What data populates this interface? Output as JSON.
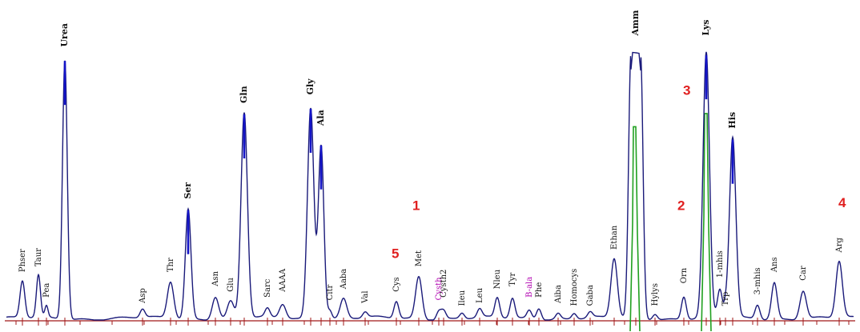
{
  "colors": {
    "baseline": "#a01818",
    "trace": "#1a1a7a",
    "peak_tip": "#1414c8",
    "overlay": "#20a020",
    "annotation": "#e02020",
    "magenta_label": "#b000b0",
    "label": "#111111"
  },
  "chart_data": {
    "type": "line",
    "title": "",
    "xlabel": "",
    "ylabel": "",
    "xlim": [
      0,
      1074
    ],
    "ylim": [
      0,
      100
    ],
    "grid": false,
    "peaks": [
      {
        "name": "Phser",
        "x": 28,
        "h": 13,
        "w": 3,
        "label_h": 17
      },
      {
        "name": "Taur",
        "x": 48,
        "h": 15,
        "w": 2.5,
        "label_h": 19
      },
      {
        "name": "Pea",
        "x": 58,
        "h": 4,
        "w": 2,
        "label_h": 8
      },
      {
        "name": "Urea",
        "x": 81,
        "h": 92,
        "w": 3,
        "label_h": 97,
        "bold": true
      },
      {
        "name": "Asp",
        "x": 178,
        "h": 3,
        "w": 3,
        "label_h": 6
      },
      {
        "name": "Thr",
        "x": 213,
        "h": 13,
        "w": 4,
        "label_h": 17
      },
      {
        "name": "Ser",
        "x": 235,
        "h": 39,
        "w": 3.5,
        "label_h": 43,
        "bold": true
      },
      {
        "name": "Asn",
        "x": 269,
        "h": 8,
        "w": 4,
        "label_h": 12
      },
      {
        "name": "Glu",
        "x": 288,
        "h": 6,
        "w": 4,
        "label_h": 10
      },
      {
        "name": "Gln",
        "x": 305,
        "h": 73,
        "w": 4,
        "label_h": 77,
        "bold": true
      },
      {
        "name": "Sarc",
        "x": 334,
        "h": 3,
        "w": 3,
        "label_h": 8
      },
      {
        "name": "AAAA",
        "x": 353,
        "h": 5,
        "w": 4,
        "label_h": 10
      },
      {
        "name": "Gly",
        "x": 388,
        "h": 75,
        "w": 4,
        "label_h": 80,
        "bold": true
      },
      {
        "name": "Ala",
        "x": 401,
        "h": 62,
        "w": 3.5,
        "label_h": 69,
        "bold": true
      },
      {
        "name": "Citr",
        "x": 412,
        "h": 3,
        "w": 2.5,
        "label_h": 7
      },
      {
        "name": "Aaba",
        "x": 429,
        "h": 7,
        "w": 4,
        "label_h": 11
      },
      {
        "name": "Val",
        "x": 456,
        "h": 2,
        "w": 3,
        "label_h": 6
      },
      {
        "name": "Cys",
        "x": 495,
        "h": 6,
        "w": 3,
        "label_h": 10
      },
      {
        "name": "Met",
        "x": 523,
        "h": 15,
        "w": 4,
        "label_h": 19
      },
      {
        "name": "Cysth",
        "x": 548,
        "h": 3,
        "w": 3,
        "label_h": 7,
        "magenta": true
      },
      {
        "name": "Cysth2",
        "x": 554,
        "h": 3,
        "w": 3,
        "label_h": 8
      },
      {
        "name": "Ileu",
        "x": 577,
        "h": 2,
        "w": 3,
        "label_h": 5
      },
      {
        "name": "Leu",
        "x": 599,
        "h": 3,
        "w": 3,
        "label_h": 6
      },
      {
        "name": "Nleu",
        "x": 621,
        "h": 7,
        "w": 3,
        "label_h": 11
      },
      {
        "name": "Tyr",
        "x": 640,
        "h": 7,
        "w": 3,
        "label_h": 12
      },
      {
        "name": "B-ala",
        "x": 661,
        "h": 3,
        "w": 3,
        "label_h": 8,
        "magenta": true
      },
      {
        "name": "Phe",
        "x": 673,
        "h": 4,
        "w": 3,
        "label_h": 8
      },
      {
        "name": "Aiba",
        "x": 697,
        "h": 2,
        "w": 3,
        "label_h": 6
      },
      {
        "name": "Homocys",
        "x": 717,
        "h": 2,
        "w": 3,
        "label_h": 5
      },
      {
        "name": "Gaba",
        "x": 737,
        "h": 2,
        "w": 3,
        "label_h": 5
      },
      {
        "name": "Ethan",
        "x": 767,
        "h": 21,
        "w": 4,
        "label_h": 25
      },
      {
        "name": "Amm",
        "x": 794,
        "h": 94,
        "w": 6,
        "label_h": 101,
        "bold": true,
        "flat": true
      },
      {
        "name": "Hylys",
        "x": 818,
        "h": 2,
        "w": 3,
        "label_h": 5
      },
      {
        "name": "Orn",
        "x": 854,
        "h": 8,
        "w": 3,
        "label_h": 13
      },
      {
        "name": "Lys",
        "x": 882,
        "h": 94,
        "w": 4,
        "label_h": 101,
        "bold": true
      },
      {
        "name": "1-mhis",
        "x": 899,
        "h": 10,
        "w": 3,
        "label_h": 15
      },
      {
        "name": "Trp",
        "x": 906,
        "h": 3,
        "w": 2,
        "label_h": 5
      },
      {
        "name": "His",
        "x": 915,
        "h": 64,
        "w": 4,
        "label_h": 68,
        "bold": true
      },
      {
        "name": "3-mhis",
        "x": 946,
        "h": 5,
        "w": 3,
        "label_h": 9
      },
      {
        "name": "Ans",
        "x": 967,
        "h": 13,
        "w": 3.5,
        "label_h": 17
      },
      {
        "name": "Car",
        "x": 1003,
        "h": 10,
        "w": 4,
        "label_h": 14
      },
      {
        "name": "Arg",
        "x": 1048,
        "h": 20,
        "w": 4,
        "label_h": 24
      }
    ],
    "annotations": [
      {
        "text": "1",
        "x": 515,
        "y": 39
      },
      {
        "text": "5",
        "x": 489,
        "y": 22
      },
      {
        "text": "3",
        "x": 853,
        "y": 80
      },
      {
        "text": "2",
        "x": 846,
        "y": 39
      },
      {
        "text": "4",
        "x": 1047,
        "y": 40
      }
    ]
  }
}
